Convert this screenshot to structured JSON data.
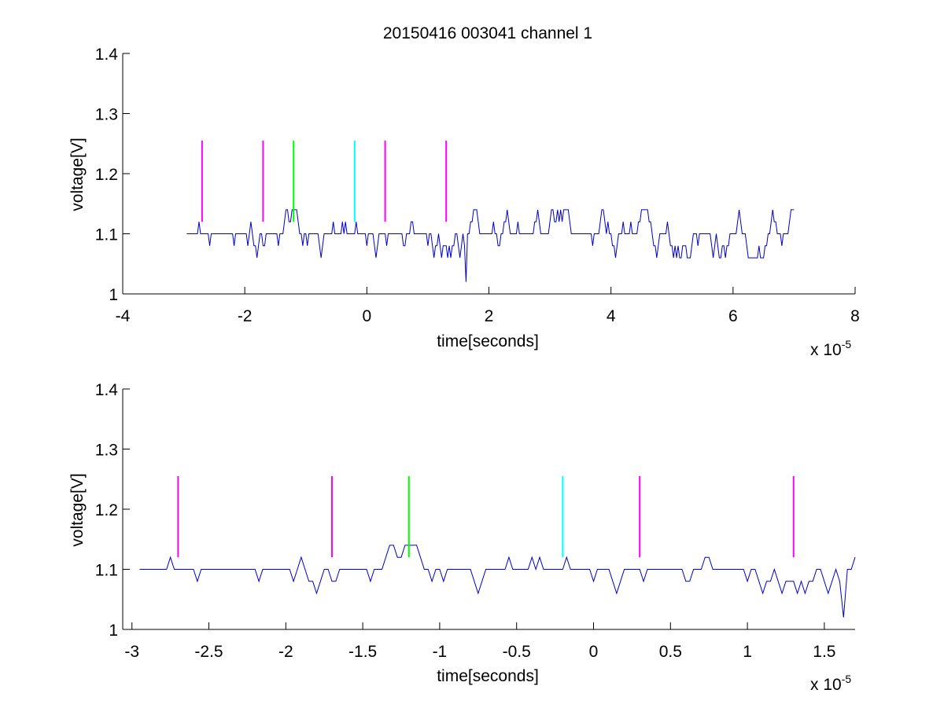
{
  "title": "20150416 003041 channel 1",
  "colors": {
    "trace": "#0000cc",
    "magenta": "#ff00ff",
    "green": "#00ff00",
    "cyan": "#00ffff",
    "axis": "#000000"
  },
  "chart_data": [
    {
      "type": "line",
      "title": "20150416 003041 channel 1",
      "xlabel": "time[seconds]",
      "ylabel": "voltage[V]",
      "x_exponent_label": "x 10",
      "x_exponent": "-5",
      "xlim": [
        -4e-05,
        8e-05
      ],
      "ylim": [
        1.0,
        1.4
      ],
      "xticks": [
        -4,
        -2,
        0,
        2,
        4,
        6,
        8
      ],
      "xtick_labels": [
        "-4",
        "-2",
        "0",
        "2",
        "4",
        "6",
        "8"
      ],
      "yticks": [
        1.0,
        1.1,
        1.2,
        1.3,
        1.4
      ],
      "ytick_labels": [
        "1",
        "1.1",
        "1.2",
        "1.3",
        "1.4"
      ],
      "grid": false,
      "series": [
        {
          "color": "blue",
          "x_range": [
            -2.95e-05,
            7e-05
          ],
          "levels_V": [
            1.06,
            1.08,
            1.1,
            1.12,
            1.14
          ],
          "baseline_V": 1.1,
          "min_V": 1.02,
          "min_at_x": 1.62e-05
        }
      ],
      "markers": [
        {
          "x": -2.7e-05,
          "color": "magenta",
          "y_range": [
            1.12,
            1.255
          ]
        },
        {
          "x": -1.7e-05,
          "color": "magenta",
          "y_range": [
            1.12,
            1.255
          ]
        },
        {
          "x": -1.2e-05,
          "color": "green",
          "y_range": [
            1.12,
            1.255
          ]
        },
        {
          "x": -2e-06,
          "color": "cyan",
          "y_range": [
            1.12,
            1.255
          ]
        },
        {
          "x": 3e-06,
          "color": "magenta",
          "y_range": [
            1.12,
            1.255
          ]
        },
        {
          "x": 1.3e-05,
          "color": "magenta",
          "y_range": [
            1.12,
            1.255
          ]
        }
      ]
    },
    {
      "type": "line",
      "xlabel": "time[seconds]",
      "ylabel": "voltage[V]",
      "x_exponent_label": "x 10",
      "x_exponent": "-5",
      "xlim": [
        -3.06e-05,
        1.7e-05
      ],
      "ylim": [
        1.0,
        1.4
      ],
      "xticks": [
        -3,
        -2.5,
        -2,
        -1.5,
        -1,
        -0.5,
        0,
        0.5,
        1,
        1.5
      ],
      "xtick_labels": [
        "-3",
        "-2.5",
        "-2",
        "-1.5",
        "-1",
        "-0.5",
        "0",
        "0.5",
        "1",
        "1.5"
      ],
      "yticks": [
        1.0,
        1.1,
        1.2,
        1.3,
        1.4
      ],
      "ytick_labels": [
        "1",
        "1.1",
        "1.2",
        "1.3",
        "1.4"
      ],
      "grid": false,
      "series": [
        {
          "color": "blue",
          "x_range": [
            -2.95e-05,
            1.7e-05
          ],
          "levels_V": [
            1.06,
            1.08,
            1.1,
            1.12,
            1.14
          ],
          "baseline_V": 1.1,
          "min_V": 1.02,
          "min_at_x": 1.62e-05
        }
      ],
      "markers": [
        {
          "x": -2.7e-05,
          "color": "magenta",
          "y_range": [
            1.12,
            1.255
          ]
        },
        {
          "x": -1.7e-05,
          "color": "magenta",
          "y_range": [
            1.12,
            1.255
          ]
        },
        {
          "x": -1.2e-05,
          "color": "green",
          "y_range": [
            1.12,
            1.255
          ]
        },
        {
          "x": -2e-06,
          "color": "cyan",
          "y_range": [
            1.12,
            1.255
          ]
        },
        {
          "x": 3e-06,
          "color": "magenta",
          "y_range": [
            1.12,
            1.255
          ]
        },
        {
          "x": 1.3e-05,
          "color": "magenta",
          "y_range": [
            1.12,
            1.255
          ]
        }
      ]
    }
  ]
}
